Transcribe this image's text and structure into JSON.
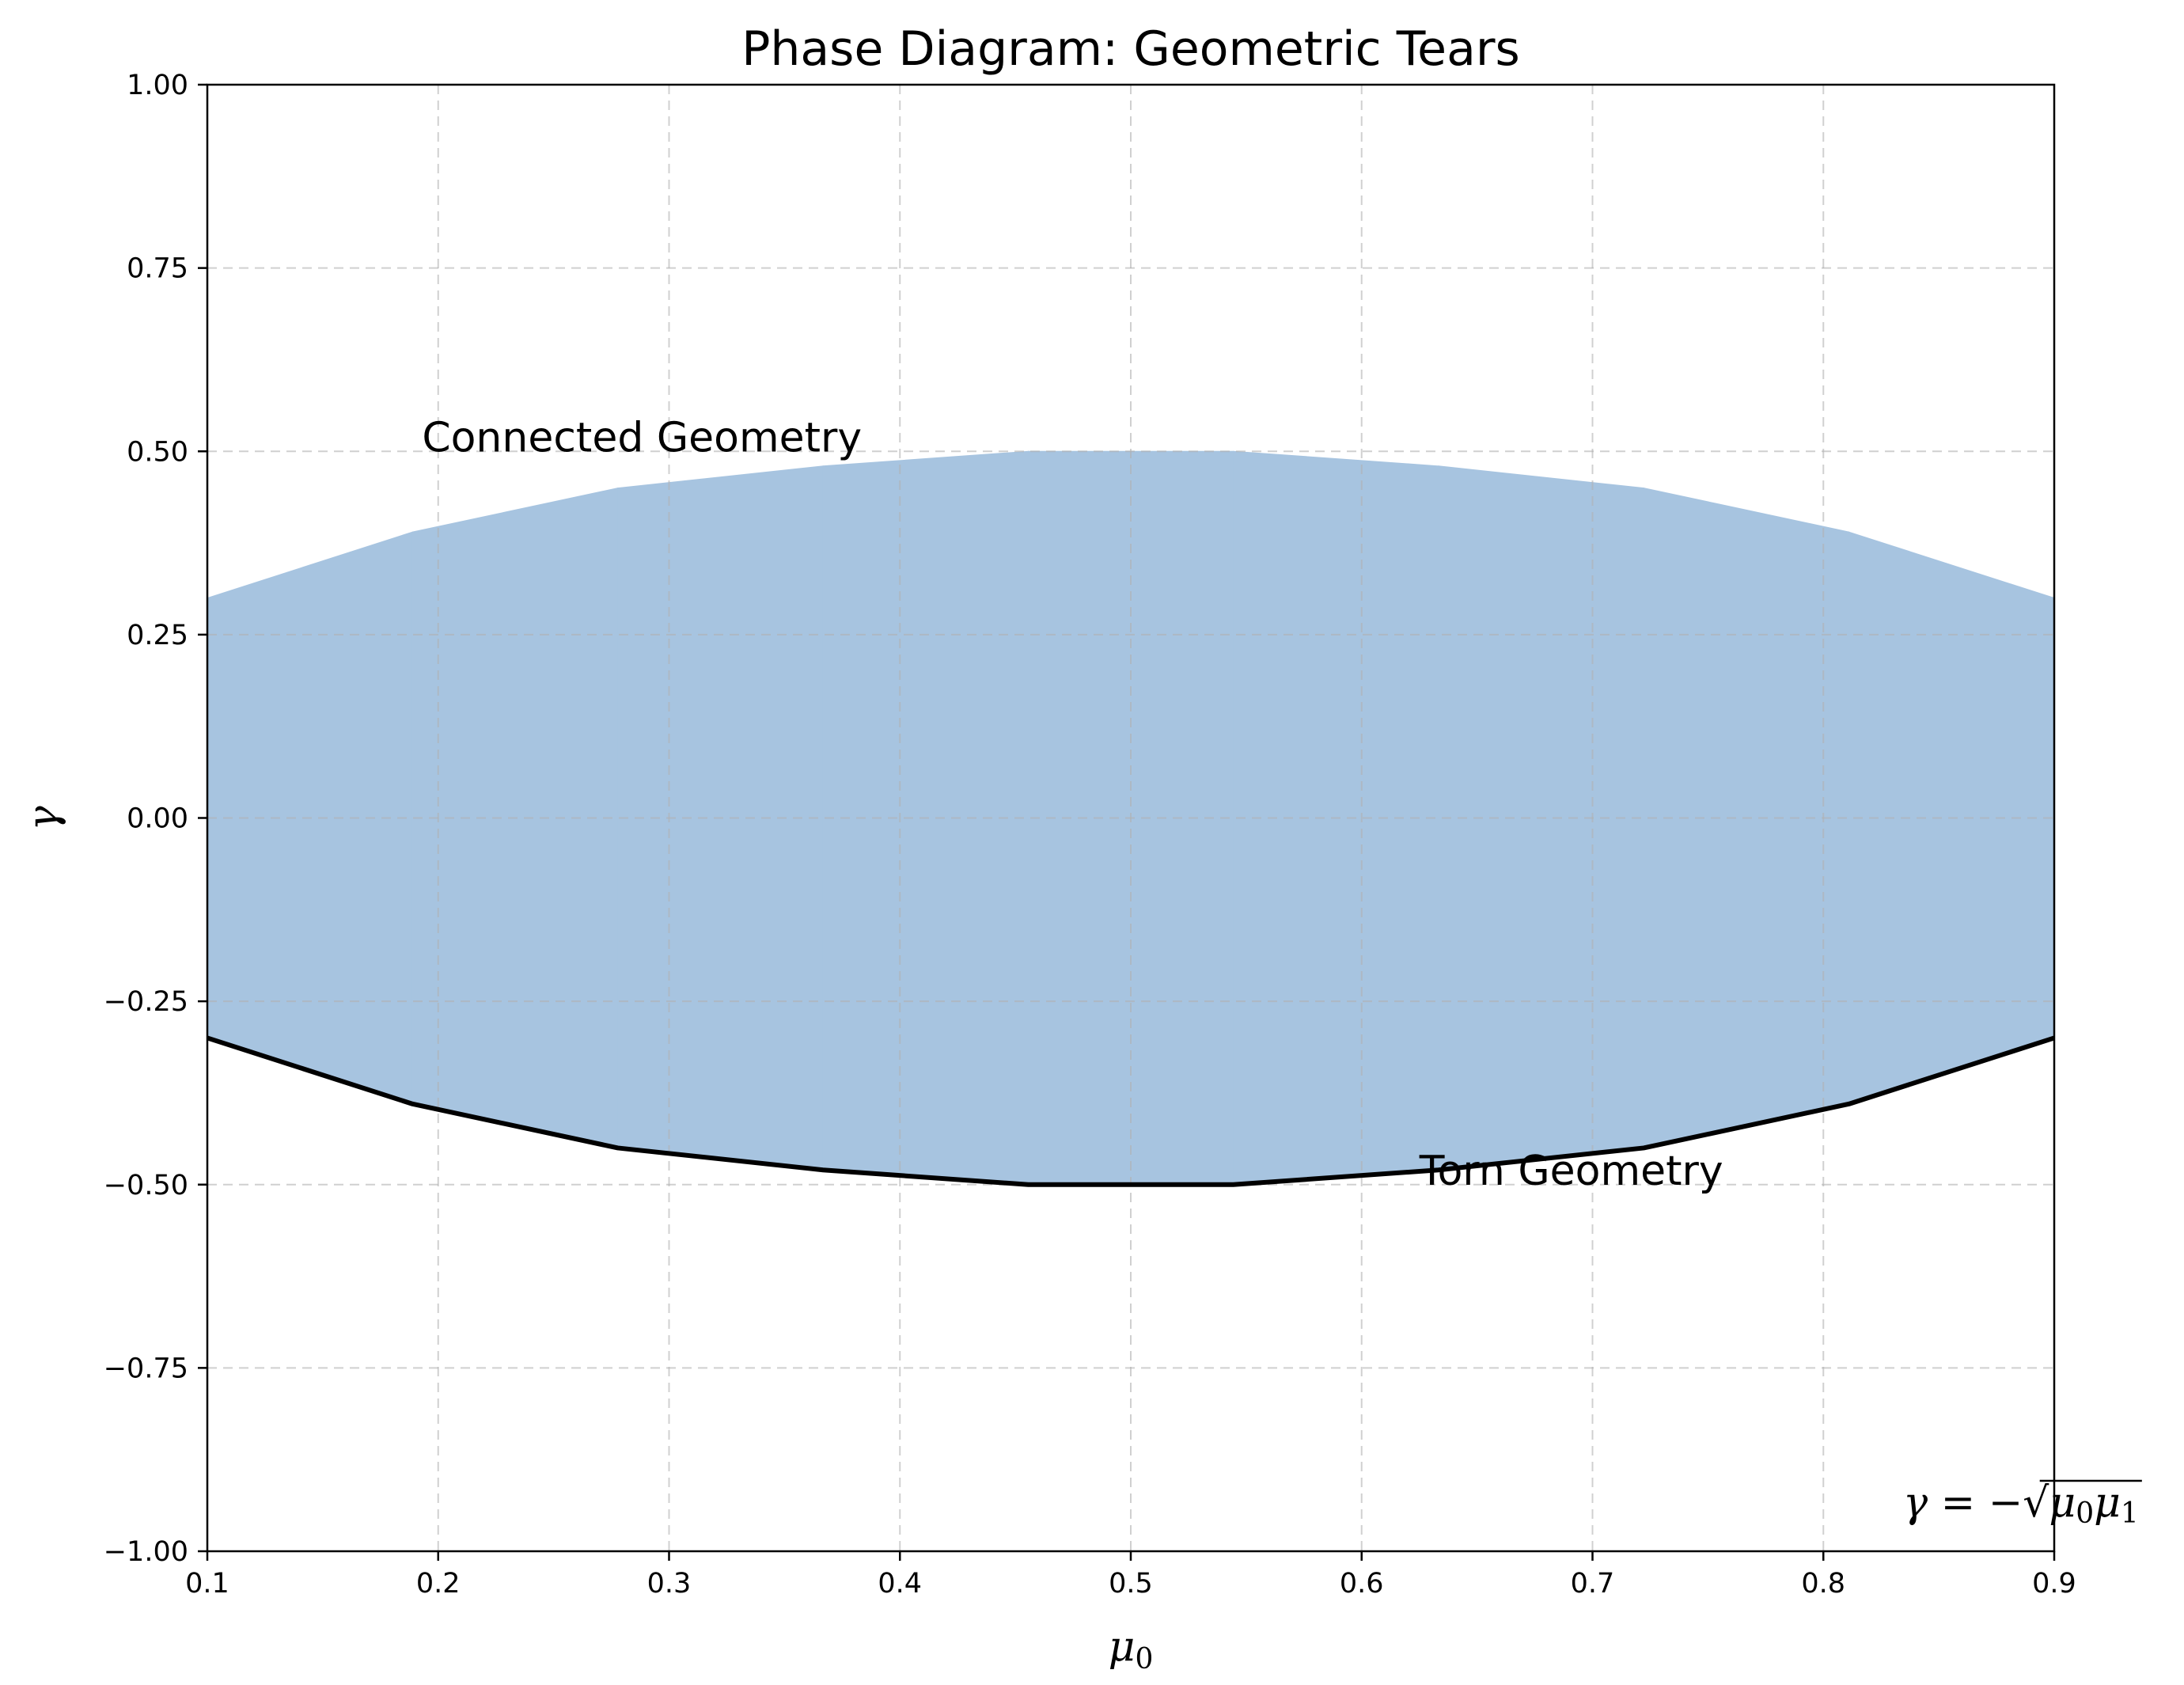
{
  "chart_data": {
    "type": "area",
    "title": "Phase Diagram: Geometric Tears",
    "xlabel": "μ0",
    "ylabel": "γ",
    "xlim": [
      0.1,
      0.9
    ],
    "ylim": [
      -1.0,
      1.0
    ],
    "grid": true,
    "xticks": [
      0.1,
      0.2,
      0.3,
      0.4,
      0.5,
      0.6,
      0.7,
      0.8,
      0.9
    ],
    "xtick_labels": [
      "0.1",
      "0.2",
      "0.3",
      "0.4",
      "0.5",
      "0.6",
      "0.7",
      "0.8",
      "0.9"
    ],
    "yticks": [
      -1.0,
      -0.75,
      -0.5,
      -0.25,
      0.0,
      0.25,
      0.5,
      0.75,
      1.0
    ],
    "ytick_labels": [
      "−1.00",
      "−0.75",
      "−0.50",
      "−0.25",
      "0.00",
      "0.25",
      "0.50",
      "0.75",
      "1.00"
    ],
    "region_color": "#a7c4e0",
    "line_color": "#000000",
    "region": {
      "x": [
        0.1,
        0.1889,
        0.2778,
        0.3667,
        0.4556,
        0.5444,
        0.6333,
        0.7222,
        0.8111,
        0.9
      ],
      "upper": [
        0.3,
        0.39,
        0.45,
        0.48,
        0.5,
        0.5,
        0.48,
        0.45,
        0.39,
        0.3
      ],
      "lower": [
        -0.3,
        -0.39,
        -0.45,
        -0.48,
        -0.5,
        -0.5,
        -0.48,
        -0.45,
        -0.39,
        -0.3
      ]
    },
    "boundary": {
      "x": [
        0.1,
        0.1889,
        0.2778,
        0.3667,
        0.4556,
        0.5444,
        0.6333,
        0.7222,
        0.8111,
        0.9
      ],
      "y": [
        -0.3,
        -0.39,
        -0.45,
        -0.48,
        -0.5,
        -0.5,
        -0.48,
        -0.45,
        -0.39,
        -0.3
      ]
    },
    "annotations": [
      {
        "text": "Connected Geometry",
        "x": 0.193,
        "y": 0.5
      },
      {
        "text": "Torn Geometry",
        "x": 0.625,
        "y": -0.5
      }
    ],
    "formula": "γ = −√μ0μ1"
  }
}
